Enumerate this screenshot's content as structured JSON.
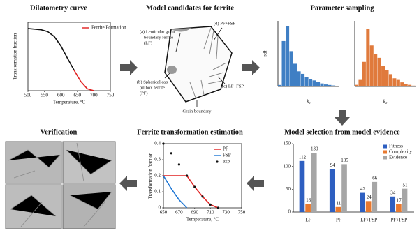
{
  "chart_data": [
    {
      "type": "line",
      "title": "Dilatometry curve",
      "x_label": "Temperature, °C",
      "y_label": "Transformation fraction",
      "x": [
        500,
        520,
        540,
        560,
        580,
        600,
        620,
        640,
        660,
        680,
        700
      ],
      "xlim": [
        500,
        750
      ],
      "xticks": [
        500,
        550,
        600,
        650,
        700,
        750
      ],
      "ylim": [
        0,
        1.1
      ],
      "legend": "top-right",
      "series": [
        {
          "color": "#111111",
          "values": [
            1,
            0.99,
            0.98,
            0.95,
            0.87,
            0.72,
            0.52,
            0.33,
            null,
            null,
            null
          ]
        },
        {
          "name": "Ferrite Formation",
          "color": "#e02020",
          "values": [
            null,
            null,
            null,
            null,
            null,
            null,
            null,
            0.33,
            0.15,
            0.03,
            0
          ]
        }
      ]
    },
    {
      "type": "histogram",
      "title": "Parameter sampling",
      "y_label": "pdf",
      "x_label": "k₁",
      "color": "#3f7fc4",
      "bins": [
        0,
        0.1,
        0.2,
        0.3,
        0.4,
        0.5,
        0.6,
        0.7,
        0.8,
        0.9,
        1.0,
        1.1,
        1.2,
        1.3,
        1.4,
        1.5,
        1.6
      ],
      "values": [
        30,
        900,
        1200,
        700,
        450,
        300,
        250,
        180,
        150,
        120,
        90,
        60,
        40,
        30,
        20,
        10
      ],
      "ylim": [
        0,
        1300
      ]
    },
    {
      "type": "histogram",
      "x_label": "k₂",
      "color": "#e07a3c",
      "bins": [
        0,
        0.1,
        0.2,
        0.3,
        0.4,
        0.5,
        0.6,
        0.7,
        0.8,
        0.9,
        1.0,
        1.1,
        1.2,
        1.3,
        1.4,
        1.5,
        1.6
      ],
      "values": [
        20,
        80,
        300,
        700,
        500,
        400,
        350,
        250,
        200,
        150,
        100,
        80,
        50,
        30,
        20,
        10
      ],
      "ylim": [
        0,
        800
      ]
    },
    {
      "type": "bar",
      "title": "Model selection from model evidence",
      "categories": [
        "LF",
        "PF",
        "LF+FSP",
        "PF+FSP"
      ],
      "ylim": [
        0,
        150
      ],
      "yticks": [
        0,
        50,
        100,
        150
      ],
      "legend": "top-right",
      "series": [
        {
          "name": "Fitness",
          "color": "#2e5fc1",
          "values": [
            112,
            94,
            42,
            34
          ]
        },
        {
          "name": "Complexity",
          "color": "#e8792f",
          "values": [
            18,
            11,
            24,
            17
          ]
        },
        {
          "name": "Evidence",
          "color": "#a6a6a6",
          "values": [
            130,
            105,
            66,
            51
          ]
        }
      ]
    },
    {
      "type": "line",
      "title": "Ferrite transformation estimation",
      "x_label": "Temperature, °C",
      "y_label": "Transformation fraction",
      "x": [
        650,
        660,
        670,
        680,
        690,
        700,
        710,
        720
      ],
      "xlim": [
        650,
        750
      ],
      "xticks": [
        650,
        670,
        690,
        710,
        730,
        750
      ],
      "ylim": [
        0,
        0.4
      ],
      "yticks": [
        0,
        0.1,
        0.2,
        0.3,
        0.4
      ],
      "legend": "top-right",
      "series": [
        {
          "name": "PF",
          "color": "#e02020",
          "values": [
            0.2,
            0.2,
            0.2,
            0.2,
            0.13,
            0.07,
            0.02,
            0
          ]
        },
        {
          "name": "FSP",
          "color": "#1f77d4",
          "values": [
            0.2,
            0.12,
            0.05,
            0,
            null,
            null,
            null,
            null
          ]
        },
        {
          "name": "exp",
          "color": "#111111",
          "mode": "markers",
          "values": [
            0.4,
            0.34,
            0.27,
            0.2,
            0.13,
            0.07,
            0.02,
            0
          ]
        }
      ]
    }
  ],
  "diagram": {
    "title": "Model candidates for ferrite",
    "labels": {
      "a": [
        "(a) Lenticular grain",
        "boundary ferrite",
        "(LF)"
      ],
      "b": [
        "(b) Spherical cap",
        "pillbox ferrite",
        "(PF)"
      ],
      "c": [
        "(c) LF+FSP"
      ],
      "d": [
        "(d) PF+FSP"
      ],
      "grain_boundary": [
        "Grain boundary"
      ]
    }
  },
  "verification": {
    "title": "Verification"
  }
}
